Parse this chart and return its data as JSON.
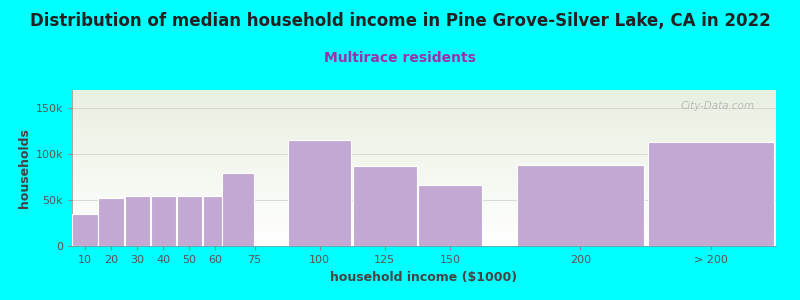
{
  "title": "Distribution of median household income in Pine Grove-Silver Lake, CA in 2022",
  "subtitle": "Multirace residents",
  "xlabel": "household income ($1000)",
  "ylabel": "households",
  "background_color": "#00FFFF",
  "plot_bg_top": "#e8f0e0",
  "plot_bg_bottom": "#ffffff",
  "bar_color": "#c4a8d4",
  "bar_edge_color": "#ffffff",
  "bin_lefts": [
    5,
    15,
    25,
    35,
    45,
    55,
    62.5,
    87.5,
    112.5,
    137.5,
    175,
    225
  ],
  "bin_widths": [
    10,
    10,
    10,
    10,
    10,
    10,
    12.5,
    25,
    25,
    25,
    50,
    50
  ],
  "bin_heights": [
    35000,
    52000,
    55000,
    55000,
    55000,
    55000,
    80000,
    115000,
    87000,
    67000,
    88000,
    113000
  ],
  "xtick_positions": [
    10,
    20,
    30,
    40,
    50,
    60,
    75,
    100,
    125,
    150,
    200,
    250
  ],
  "xtick_labels": [
    "10",
    "20",
    "30",
    "40",
    "50",
    "60",
    "75",
    "100",
    "125",
    "150",
    "200",
    "> 200"
  ],
  "ylim": [
    0,
    170000
  ],
  "xlim": [
    5,
    275
  ],
  "yticks": [
    0,
    50000,
    100000,
    150000
  ],
  "ytick_labels": [
    "0",
    "50k",
    "100k",
    "150k"
  ],
  "watermark": "City-Data.com",
  "title_fontsize": 12,
  "subtitle_fontsize": 10,
  "axis_label_fontsize": 9,
  "tick_fontsize": 8
}
